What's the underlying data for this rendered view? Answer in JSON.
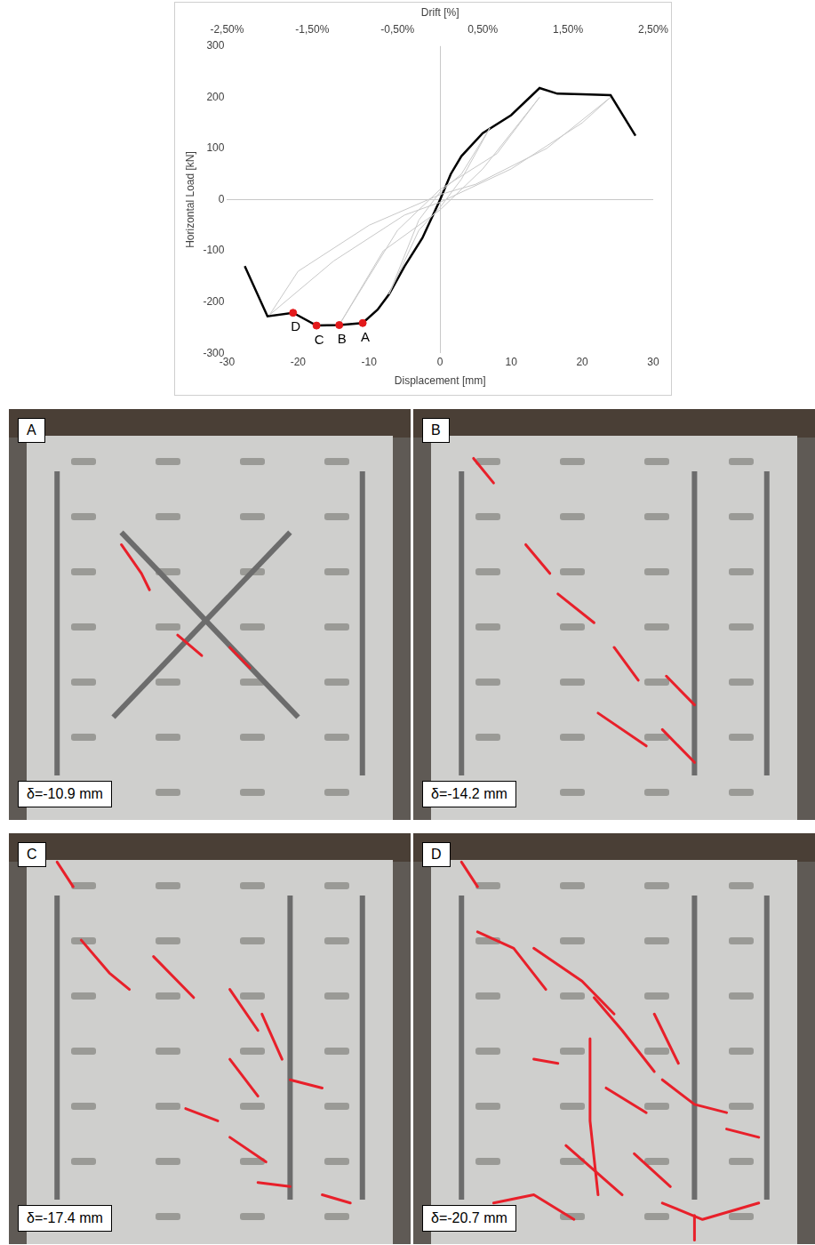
{
  "chart_data": {
    "type": "line",
    "x_label": "Displacement [mm]",
    "y_label": "Horizontal Load [kN]",
    "x2_label": "Drift [%]",
    "xlim": [
      -30,
      30
    ],
    "xticks": [
      -30,
      -20,
      -10,
      0,
      10,
      20,
      30
    ],
    "ylim": [
      -300,
      300
    ],
    "yticks": [
      -300,
      -200,
      -100,
      0,
      100,
      200,
      300
    ],
    "x2lim": [
      -2.5,
      2.5
    ],
    "x2ticks": [
      {
        "value": -2.5,
        "label": "-2,50%"
      },
      {
        "value": -1.5,
        "label": "-1,50%"
      },
      {
        "value": -0.5,
        "label": "-0,50%"
      },
      {
        "value": 0.5,
        "label": "0,50%"
      },
      {
        "value": 1.5,
        "label": "1,50%"
      },
      {
        "value": 2.5,
        "label": "2,50%"
      }
    ],
    "grid": false,
    "series": [
      {
        "color": "#c8c8c8",
        "marker": "none",
        "line_style": "solid",
        "x": [
          7,
          3,
          0,
          -3,
          -7.2,
          -3,
          0,
          3,
          7
        ],
        "values": [
          140,
          50,
          15,
          -40,
          -185,
          -60,
          -15,
          40,
          140
        ]
      },
      {
        "color": "#c8c8c8",
        "marker": "none",
        "line_style": "solid",
        "x": [
          14,
          8,
          0,
          -6,
          -14,
          -8,
          0,
          6,
          14
        ],
        "values": [
          200,
          90,
          20,
          -60,
          -240,
          -100,
          -20,
          60,
          200
        ]
      },
      {
        "color": "#c8c8c8",
        "marker": "none",
        "line_style": "solid",
        "x": [
          24,
          15,
          5,
          0,
          -10,
          -20,
          -24,
          -15,
          -5,
          0,
          10,
          20,
          24
        ],
        "values": [
          200,
          100,
          30,
          10,
          -50,
          -140,
          -225,
          -120,
          -30,
          -5,
          60,
          150,
          200
        ]
      },
      {
        "color": "#000000",
        "marker": "none",
        "line_style": "solid",
        "x": [
          -27.5,
          -24.3,
          -20.7,
          -17.4,
          -14.2,
          -10.9,
          -8.8,
          -7.2,
          -5,
          -2.5,
          0,
          1.5,
          3,
          6,
          10,
          14,
          16.5,
          20,
          24,
          27.5
        ],
        "values": [
          -130,
          -228,
          -221,
          -246,
          -245,
          -241,
          -215,
          -185,
          -130,
          -75,
          0,
          50,
          85,
          130,
          165,
          218,
          207,
          206,
          204,
          125
        ]
      },
      {
        "type": "scatter",
        "color": "#e31a1c",
        "marker": "circle",
        "x": [
          -10.9,
          -14.2,
          -17.4,
          -20.7
        ],
        "values": [
          -241,
          -245,
          -246,
          -221
        ],
        "point_labels": [
          "A",
          "B",
          "C",
          "D"
        ]
      }
    ]
  },
  "panels": [
    {
      "label": "A",
      "caption": "δ=-10.9 mm"
    },
    {
      "label": "B",
      "caption": "δ=-14.2 mm"
    },
    {
      "label": "C",
      "caption": "δ=-17.4 mm"
    },
    {
      "label": "D",
      "caption": "δ=-20.7 mm"
    }
  ]
}
